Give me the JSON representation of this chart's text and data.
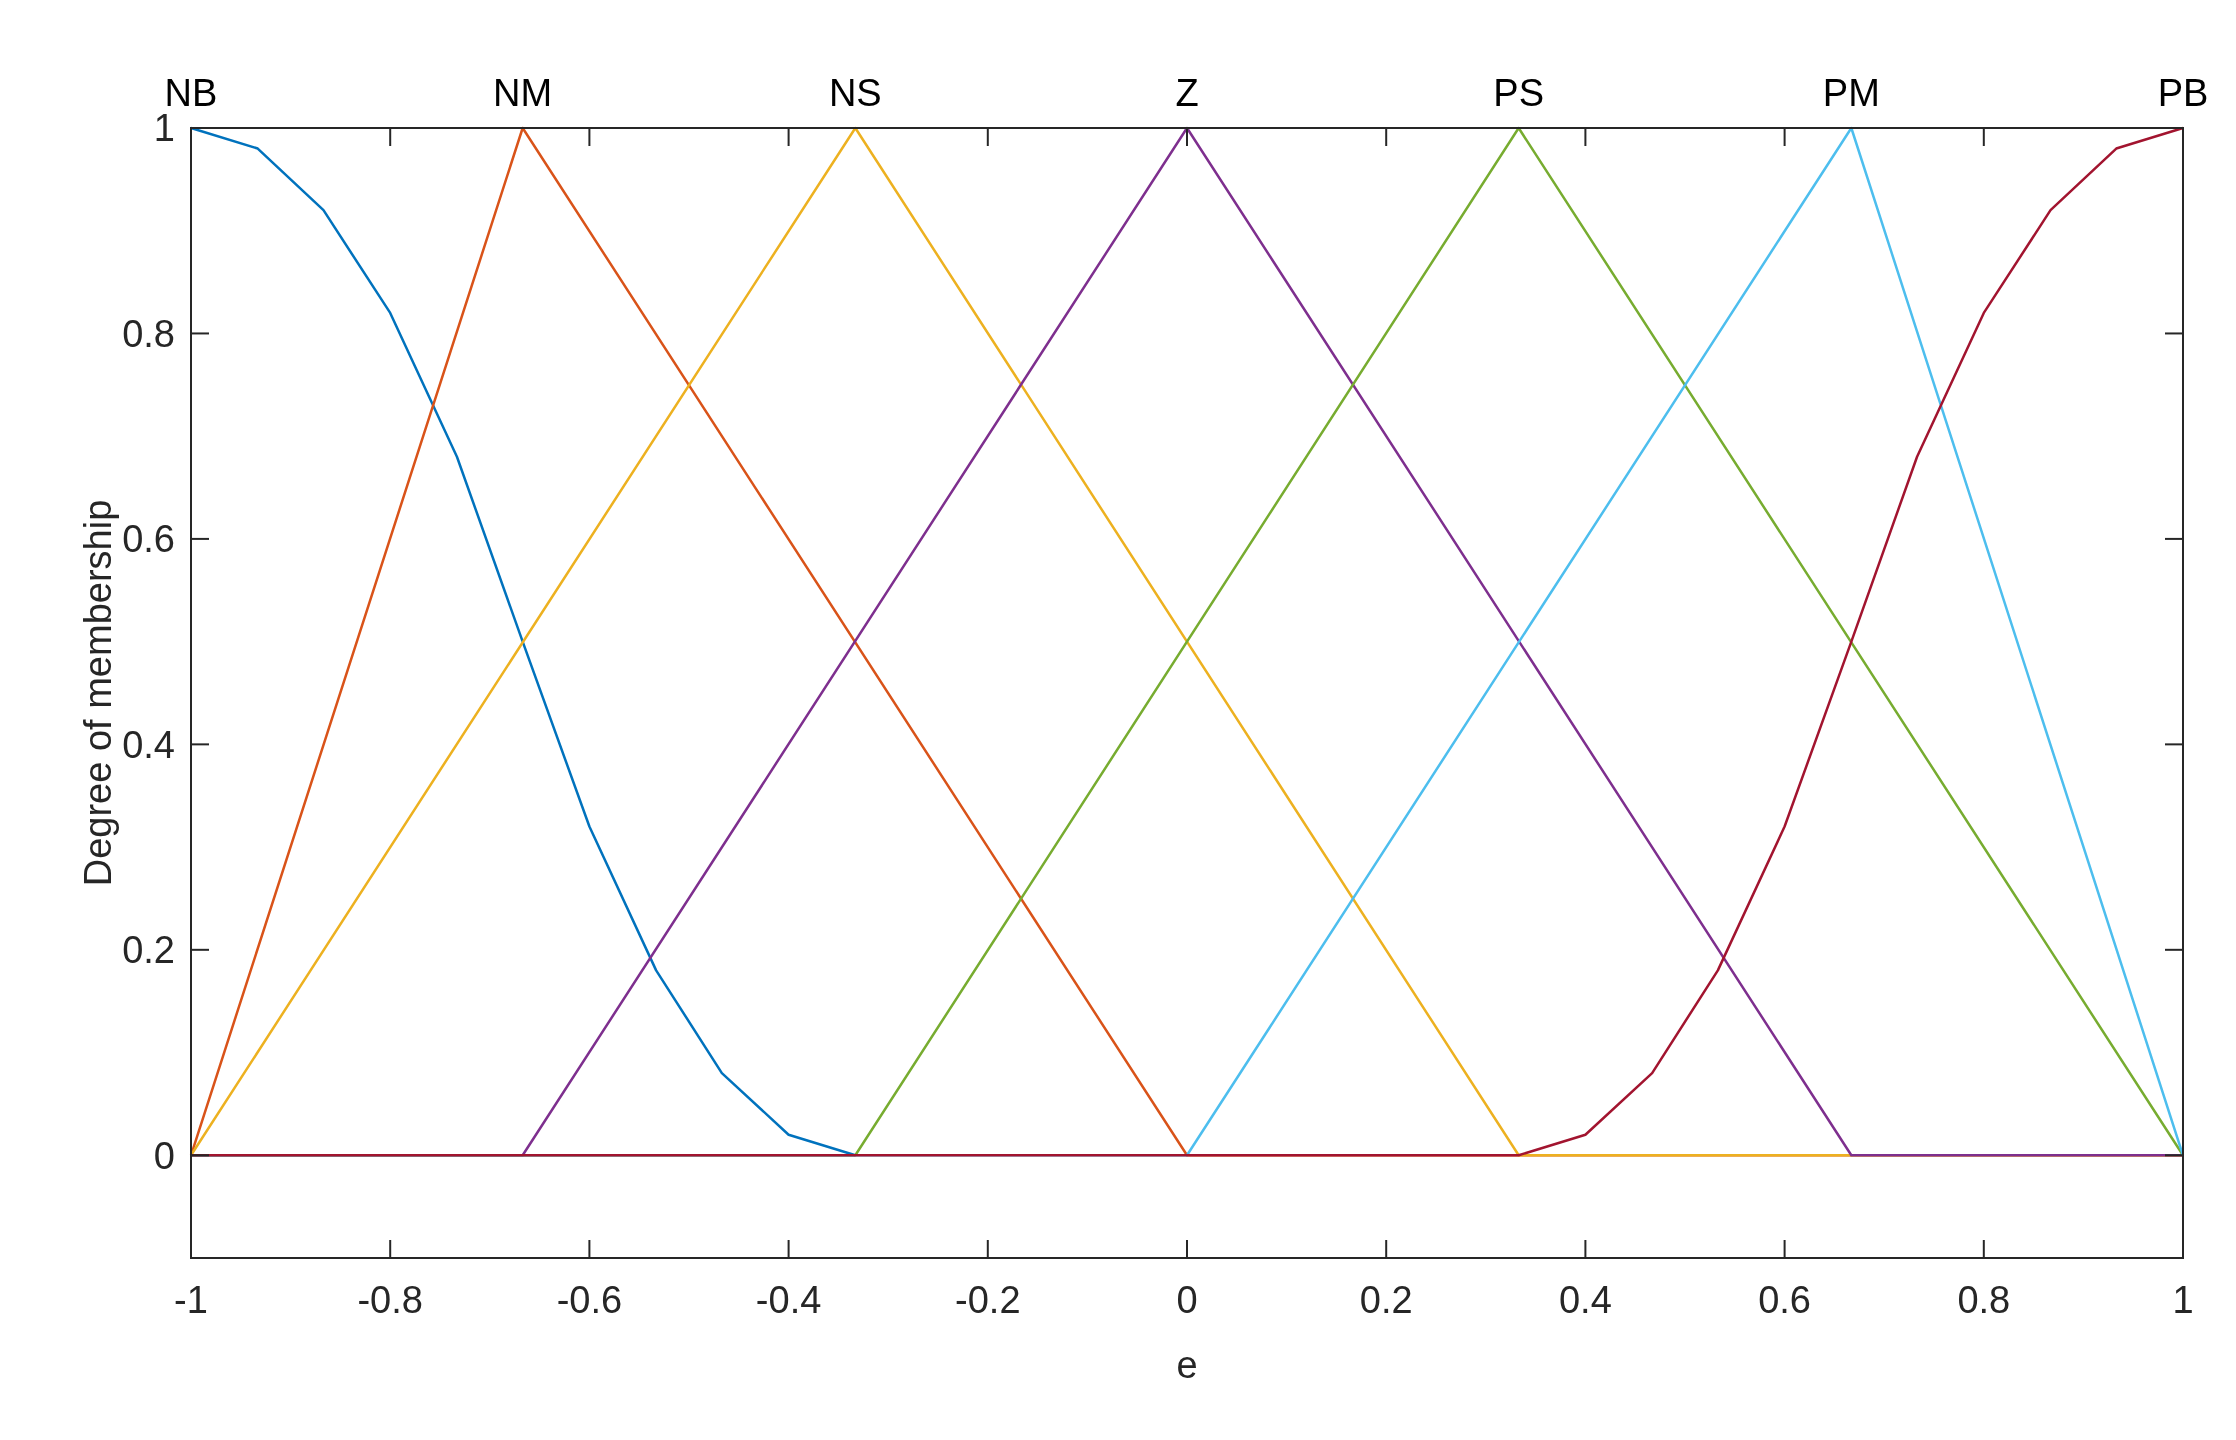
{
  "chart_data": {
    "type": "line",
    "xlabel": "e",
    "ylabel": "Degree of membership",
    "xlim": [
      -1,
      1
    ],
    "ylim": [
      -0.1,
      1
    ],
    "xticks": [
      -1,
      -0.8,
      -0.6,
      -0.4,
      -0.2,
      0,
      0.2,
      0.4,
      0.6,
      0.8,
      1
    ],
    "yticks": [
      0,
      0.2,
      0.4,
      0.6,
      0.8,
      1
    ],
    "marker": "none",
    "line_style": "solid",
    "series": [
      {
        "name": "NB",
        "color": "#0072bd",
        "x": [
          -1,
          -0.933,
          -0.867,
          -0.8,
          -0.733,
          -0.667,
          -0.6,
          -0.533,
          -0.467,
          -0.4,
          -0.333
        ],
        "values": [
          1,
          0.98,
          0.92,
          0.82,
          0.68,
          0.5,
          0.32,
          0.18,
          0.08,
          0.02,
          0
        ]
      },
      {
        "name": "NM",
        "color": "#d95319",
        "x": [
          -1,
          -0.667,
          0,
          1
        ],
        "values": [
          0,
          1,
          0,
          0
        ]
      },
      {
        "name": "NS",
        "color": "#edb120",
        "x": [
          -1,
          -0.333,
          0.333,
          1
        ],
        "values": [
          0,
          1,
          0,
          0
        ]
      },
      {
        "name": "Z",
        "color": "#7e2f8e",
        "x": [
          -1,
          -0.667,
          0,
          0.667,
          1
        ],
        "values": [
          0,
          0,
          1,
          0,
          0
        ]
      },
      {
        "name": "PS",
        "color": "#77ac30",
        "x": [
          -1,
          -0.333,
          0.333,
          1
        ],
        "values": [
          0,
          0,
          1,
          0
        ]
      },
      {
        "name": "PM",
        "color": "#4dbeee",
        "x": [
          -1,
          0,
          0.667,
          1
        ],
        "values": [
          0,
          0,
          1,
          0
        ]
      },
      {
        "name": "PB",
        "color": "#a2142f",
        "x": [
          -1,
          0.333,
          0.4,
          0.467,
          0.533,
          0.6,
          0.667,
          0.733,
          0.8,
          0.867,
          0.933,
          1
        ],
        "values": [
          0,
          0,
          0.02,
          0.08,
          0.18,
          0.32,
          0.5,
          0.68,
          0.82,
          0.92,
          0.98,
          1
        ]
      }
    ]
  }
}
